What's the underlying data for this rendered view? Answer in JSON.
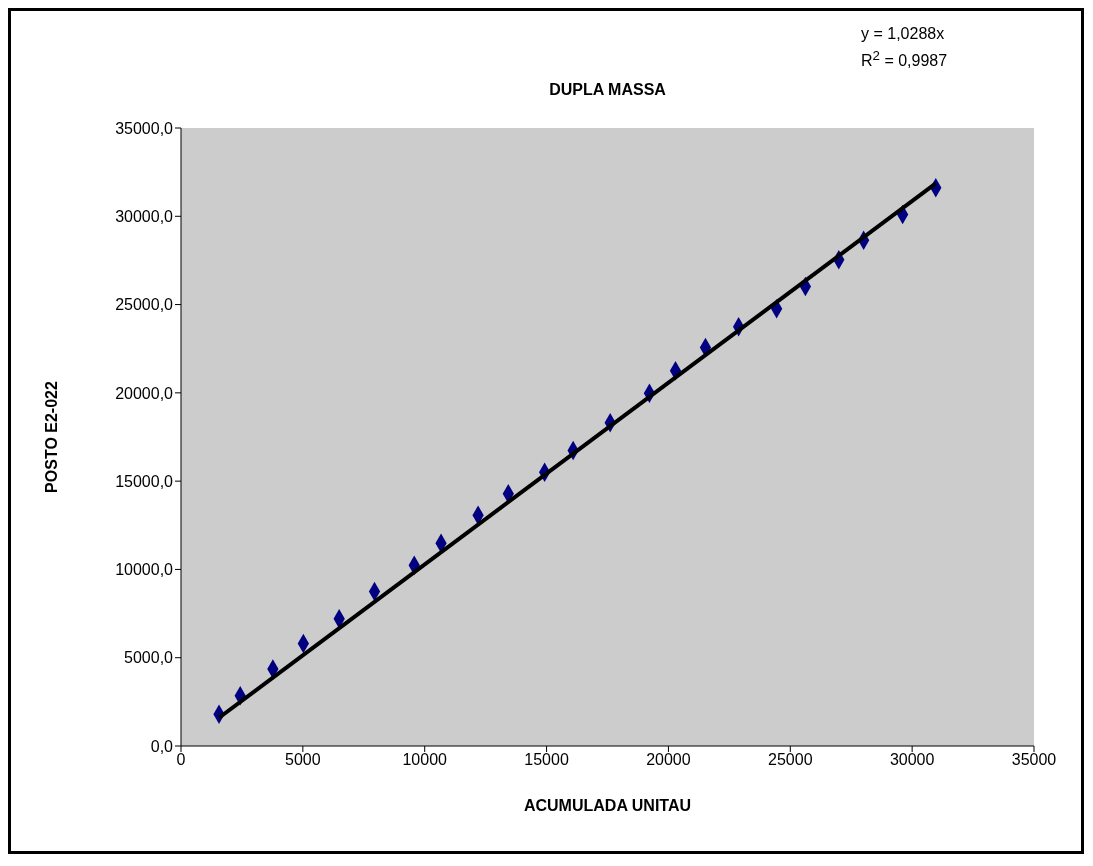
{
  "chart_data": {
    "type": "scatter",
    "title": "DUPLA MASSA",
    "xlabel": "ACUMULADA UNITAU",
    "ylabel": "POSTO E2-022",
    "annotations": [
      "y = 1,0288x",
      "R$^{2}$ = 0,9987"
    ],
    "xlim": [
      0,
      35000
    ],
    "xticks": [
      0,
      5000,
      10000,
      15000,
      20000,
      25000,
      30000,
      35000
    ],
    "ylim": [
      0,
      35000
    ],
    "yticks": [
      {
        "value": 0,
        "label": "0,0"
      },
      {
        "value": 5000,
        "label": "5000,0"
      },
      {
        "value": 10000,
        "label": "10000,0"
      },
      {
        "value": 15000,
        "label": "15000,0"
      },
      {
        "value": 20000,
        "label": "20000,0"
      },
      {
        "value": 25000,
        "label": "25000,0"
      },
      {
        "value": 30000,
        "label": "30000,0"
      },
      {
        "value": 35000,
        "label": "35000,0"
      }
    ],
    "grid": false,
    "marker": "diamond",
    "series": [
      {
        "color": "#000080",
        "x": [
          1560,
          2430,
          3770,
          5020,
          6490,
          7940,
          9570,
          10670,
          12190,
          13430,
          14920,
          16090,
          17610,
          19220,
          20290,
          21520,
          22880,
          24440,
          25620,
          26990,
          28010,
          29610,
          30970
        ],
        "values": [
          1800,
          2840,
          4360,
          5800,
          7200,
          8750,
          10230,
          11480,
          13070,
          14280,
          15510,
          16740,
          18310,
          19980,
          21250,
          22570,
          23750,
          24760,
          26020,
          27540,
          28640,
          30100,
          31610
        ]
      },
      {
        "type": "line",
        "color": "#000000",
        "line_style": "solid",
        "marker": "none",
        "x": [
          1560,
          30970
        ],
        "values": [
          1600,
          31860
        ]
      }
    ]
  }
}
